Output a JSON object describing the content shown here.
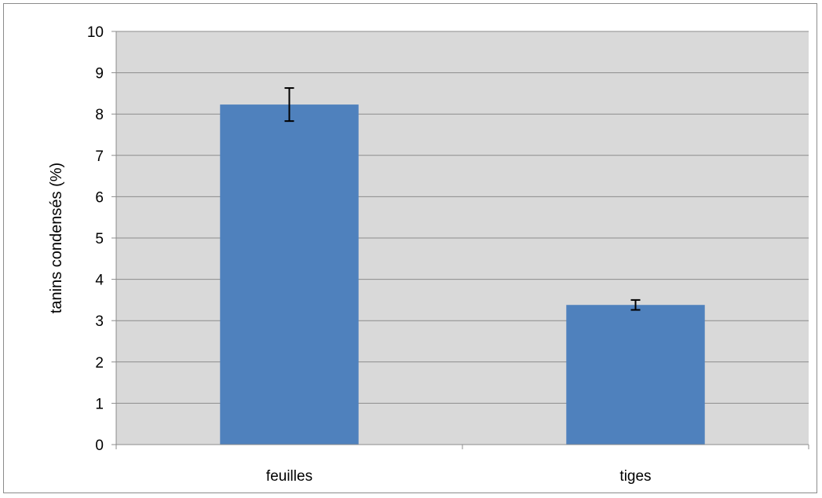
{
  "chart_data": {
    "type": "bar",
    "title": "",
    "xlabel": "",
    "ylabel": "tanins condensés (%)",
    "categories": [
      "feuilles",
      "tiges"
    ],
    "values": [
      8.23,
      3.38
    ],
    "error": [
      0.4,
      0.12
    ],
    "ylim": [
      0,
      10
    ],
    "yticks": [
      "0",
      "1",
      "2",
      "3",
      "4",
      "5",
      "6",
      "7",
      "8",
      "9",
      "10"
    ],
    "grid": true,
    "legend": "none",
    "colors": {
      "bar": "#4f81bd",
      "plot_background": "#d9d9d9",
      "gridline": "#8c8c8c",
      "error_bar": "#000000"
    }
  }
}
